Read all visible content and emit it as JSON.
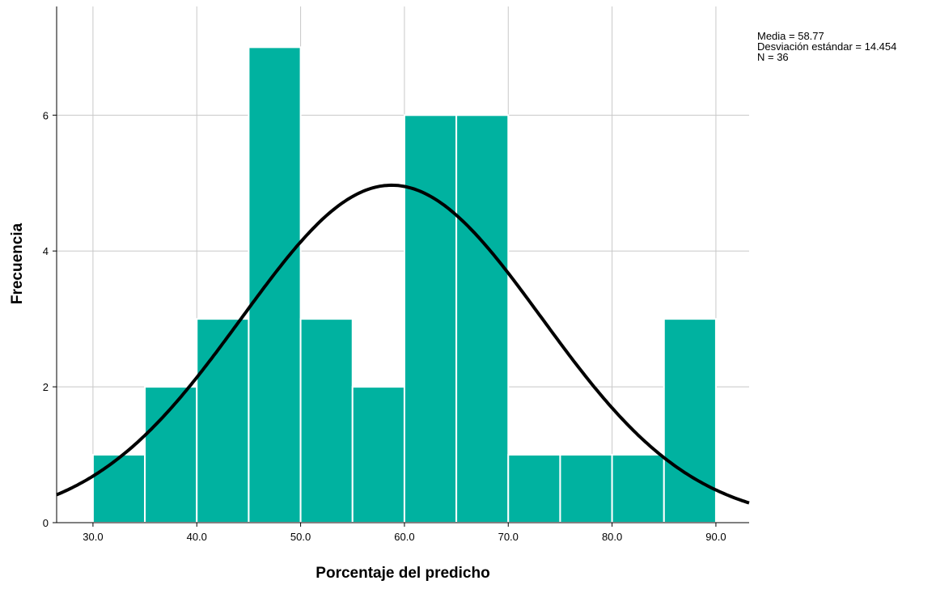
{
  "chart_data": {
    "type": "bar",
    "subtype": "histogram",
    "xlabel": "Porcentaje del predicho",
    "ylabel": "Frecuencia",
    "xlim": [
      26.5,
      93.2
    ],
    "ylim": [
      0,
      7.6
    ],
    "x_ticks": [
      30,
      40,
      50,
      60,
      70,
      80,
      90
    ],
    "x_tick_labels": [
      "30.0",
      "40.0",
      "50.0",
      "60.0",
      "70.0",
      "80.0",
      "90.0"
    ],
    "y_ticks": [
      0,
      2,
      4,
      6
    ],
    "y_tick_labels": [
      "0",
      "2",
      "4",
      "6"
    ],
    "bins": [
      {
        "start": 30,
        "end": 35,
        "count": 1
      },
      {
        "start": 35,
        "end": 40,
        "count": 2
      },
      {
        "start": 40,
        "end": 45,
        "count": 3
      },
      {
        "start": 45,
        "end": 50,
        "count": 7
      },
      {
        "start": 50,
        "end": 55,
        "count": 3
      },
      {
        "start": 55,
        "end": 60,
        "count": 2
      },
      {
        "start": 60,
        "end": 65,
        "count": 6
      },
      {
        "start": 65,
        "end": 70,
        "count": 6
      },
      {
        "start": 70,
        "end": 75,
        "count": 1
      },
      {
        "start": 75,
        "end": 80,
        "count": 1
      },
      {
        "start": 80,
        "end": 85,
        "count": 1
      },
      {
        "start": 85,
        "end": 90,
        "count": 3
      }
    ],
    "normal_curve": {
      "mean": 58.77,
      "sd": 14.454,
      "n": 36,
      "bin_width": 5
    },
    "stats_text": [
      "Media = 58.77",
      "Desviación estándar = 14.454",
      "N = 36"
    ],
    "grid": true,
    "bar_color": "#00B2A0",
    "curve_color": "#000000",
    "grid_color": "#C8C8C8"
  }
}
